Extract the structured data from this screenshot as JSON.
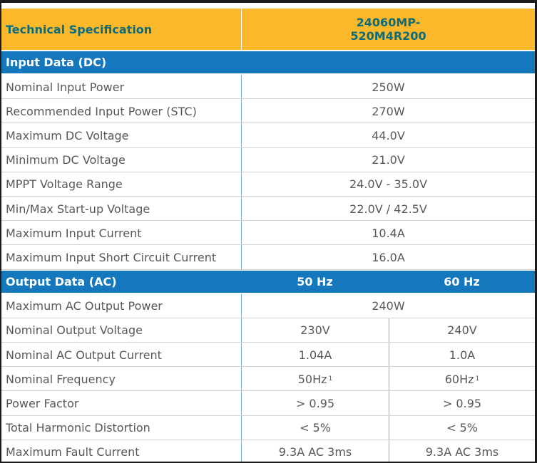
{
  "header": {
    "title": "Technical Specification",
    "model_lines": [
      "24060MP-",
      "520M4R200"
    ]
  },
  "sections": [
    {
      "title": "Input Data (DC)",
      "rows": [
        [
          "Nominal Input Power",
          "250W"
        ],
        [
          "Recommended Input Power (STC)",
          "270W"
        ],
        [
          "Maximum DC Voltage",
          "44.0V"
        ],
        [
          "Minimum DC Voltage",
          "21.0V"
        ],
        [
          "MPPT Voltage Range",
          "24.0V - 35.0V"
        ],
        [
          "Min/Max Start-up Voltage",
          "22.0V / 42.5V"
        ],
        [
          "Maximum Input Current",
          "10.4A"
        ],
        [
          "Maximum Input Short Circuit Current",
          "16.0A"
        ]
      ]
    },
    {
      "title": "Output Data (AC)",
      "columns": [
        "50 Hz",
        "60 Hz"
      ],
      "rows": [
        [
          "Maximum AC Output Power",
          "240W"
        ],
        [
          "Nominal Output Voltage",
          "230V",
          "240V"
        ],
        [
          "Nominal AC Output Current",
          "1.04A",
          "1.0A"
        ],
        [
          "Nominal Frequency",
          {
            "text": "50Hz",
            "note": "1"
          },
          {
            "text": "60Hz",
            "note": "1"
          }
        ],
        [
          "Power Factor",
          "> 0.95",
          "> 0.95"
        ],
        [
          "Total Harmonic Distortion",
          "< 5%",
          "< 5%"
        ],
        [
          "Maximum Fault Current",
          "9.3A AC 3ms",
          "9.3A AC 3ms"
        ]
      ]
    }
  ]
}
